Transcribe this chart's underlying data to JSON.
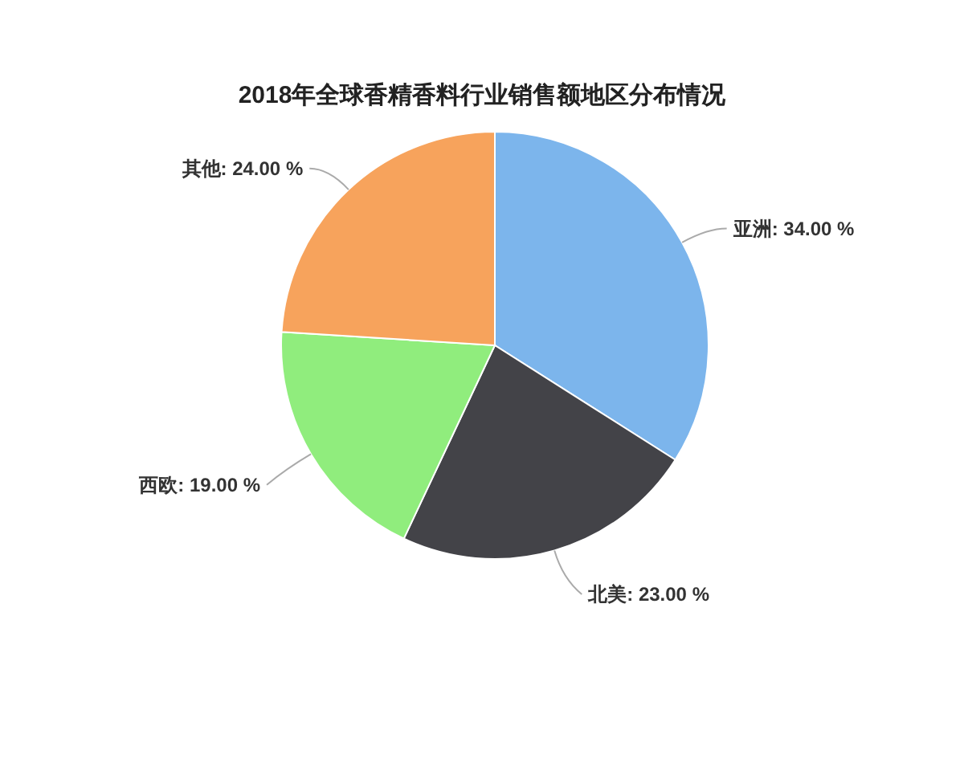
{
  "chart_data": {
    "type": "pie",
    "title": "2018年全球香精香料行业销售额地区分布情况",
    "categories": [
      "亚洲",
      "北美",
      "西欧",
      "其他"
    ],
    "values": [
      34,
      23,
      19,
      24
    ],
    "colors": [
      "#7cb5ec",
      "#434348",
      "#90ed7d",
      "#f7a35c"
    ],
    "value_labels": [
      "34.00 %",
      "23.00 %",
      "19.00 %",
      "24.00 %"
    ]
  }
}
